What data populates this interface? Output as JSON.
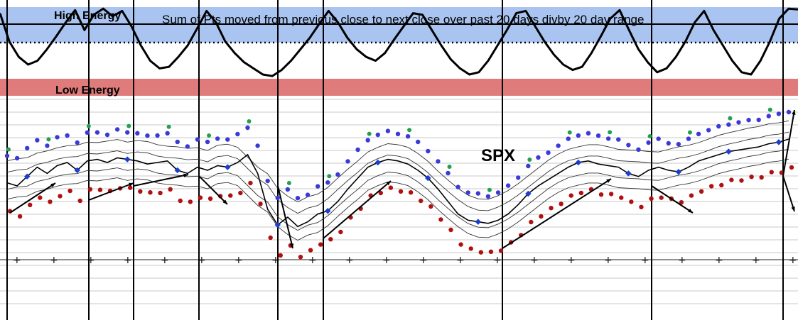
{
  "chart_data": [
    {
      "type": "line",
      "panel": "energy-oscillator",
      "title": "Sum of Pts moved from previous close to next close over past 20 days divby 20 day range",
      "zones": [
        {
          "label": "High Energy",
          "color": "#a9c4f0",
          "level": "upper band"
        },
        {
          "label": "Low Energy",
          "color": "#e07b7b",
          "level": "lower band"
        }
      ],
      "reference_lines": {
        "solid": "top threshold",
        "dotted": "high-energy threshold"
      },
      "series": [
        {
          "color": "#000000",
          "highlight_color": "#3a5fa8",
          "values": [
            0.92,
            0.55,
            0.35,
            0.25,
            0.3,
            0.45,
            0.62,
            0.8,
            0.96,
            0.7,
            0.9,
            0.98,
            0.88,
            0.95,
            0.75,
            0.5,
            0.3,
            0.2,
            0.22,
            0.35,
            0.5,
            0.72,
            0.95,
            0.8,
            0.55,
            0.4,
            0.28,
            0.2,
            0.12,
            0.1,
            0.18,
            0.3,
            0.45,
            0.6,
            0.78,
            0.95,
            0.8,
            0.6,
            0.45,
            0.35,
            0.3,
            0.4,
            0.58,
            0.75,
            0.92,
            0.9,
            0.7,
            0.5,
            0.32,
            0.2,
            0.12,
            0.15,
            0.3,
            0.5,
            0.7,
            0.92,
            0.95,
            0.75,
            0.55,
            0.38,
            0.25,
            0.18,
            0.22,
            0.4,
            0.62,
            0.85,
            0.96,
            0.7,
            0.45,
            0.28,
            0.15,
            0.2,
            0.35,
            0.55,
            0.8,
            0.95,
            0.7,
            0.5,
            0.3,
            0.15,
            0.12,
            0.3,
            0.55,
            0.85,
            0.98,
            0.97
          ]
        }
      ]
    },
    {
      "type": "line",
      "panel": "price",
      "title": "SPX",
      "series": [
        {
          "name": "",
          "color": "#000000",
          "values": [
            42,
            40,
            46,
            52,
            48,
            53,
            55,
            50,
            56,
            57,
            55,
            58,
            57,
            56,
            54,
            55,
            56,
            50,
            48,
            52,
            50,
            53,
            52,
            55,
            60,
            48,
            25,
            15,
            20,
            14,
            17,
            22,
            24,
            30,
            38,
            45,
            52,
            55,
            57,
            56,
            54,
            50,
            45,
            38,
            30,
            22,
            18,
            17,
            16,
            18,
            22,
            28,
            35,
            40,
            44,
            48,
            52,
            55,
            56,
            54,
            53,
            52,
            48,
            46,
            50,
            52,
            50,
            49,
            52,
            56,
            58,
            60,
            62,
            63,
            64,
            65,
            67,
            68,
            70
          ]
        }
      ]
    }
  ],
  "vertical_markers": 13
}
